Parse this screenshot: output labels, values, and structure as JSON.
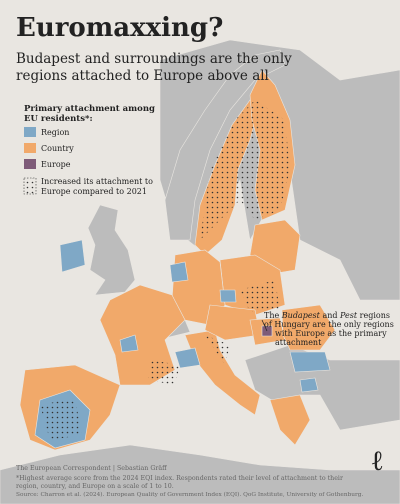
{
  "title": "Euromaxxing?",
  "subtitle": [
    "Budapest and surroundings are the only",
    "regions attached to Europe above all"
  ],
  "legend": {
    "title": [
      "Primary attachment among",
      "EU residents*:"
    ],
    "items": [
      "Region",
      "Country",
      "Europe"
    ],
    "dotted": [
      "Increased its attachment to",
      "Europe compared to 2021"
    ]
  },
  "annotation": {
    "first_line": [
      "The",
      "Budapest",
      "and",
      "Pest",
      "regions"
    ],
    "lines": [
      "of Hungary are the only regions",
      "with Europe as the primary",
      "attachment"
    ]
  },
  "footer": {
    "credit": "The European Correspondent | Sebastian Gräff",
    "notes": [
      "*Highest average score from the 2024 EQI index. Respondents rated their level of attachment to their",
      "region, country, and Europe on a scale of 1 to 10.",
      "Source: Charron et al. (2024). European Quality of Government Index (EQI). QoG Institute, University of Gothenburg."
    ]
  },
  "logo": "ℓ"
}
